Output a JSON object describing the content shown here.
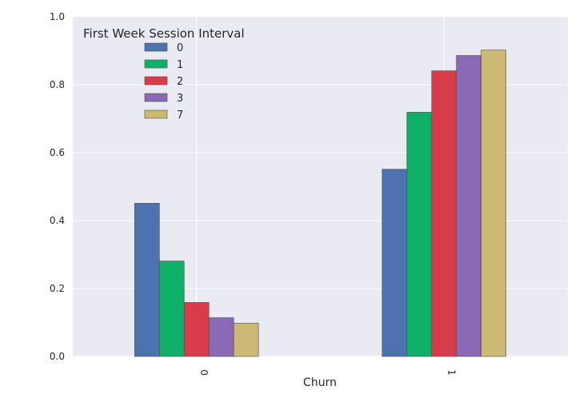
{
  "chart_data": {
    "type": "bar",
    "categories": [
      "0",
      "1"
    ],
    "xlabel": "Churn",
    "ylabel": "",
    "ylim": [
      0,
      1.0
    ],
    "yticks": [
      "0.0",
      "0.2",
      "0.4",
      "0.6",
      "0.8",
      "1.0"
    ],
    "grid": true,
    "legend": {
      "title": "First Week Session Interval",
      "placement": "top-left"
    },
    "series": [
      {
        "name": "0",
        "color": "#4C72B0",
        "values": [
          0.451,
          0.551
        ]
      },
      {
        "name": "1",
        "color": "#10B068",
        "values": [
          0.281,
          0.719
        ]
      },
      {
        "name": "2",
        "color": "#D73C4A",
        "values": [
          0.159,
          0.841
        ]
      },
      {
        "name": "3",
        "color": "#8A68B4",
        "values": [
          0.114,
          0.886
        ]
      },
      {
        "name": "7",
        "color": "#CCB974",
        "values": [
          0.098,
          0.902
        ]
      }
    ]
  }
}
